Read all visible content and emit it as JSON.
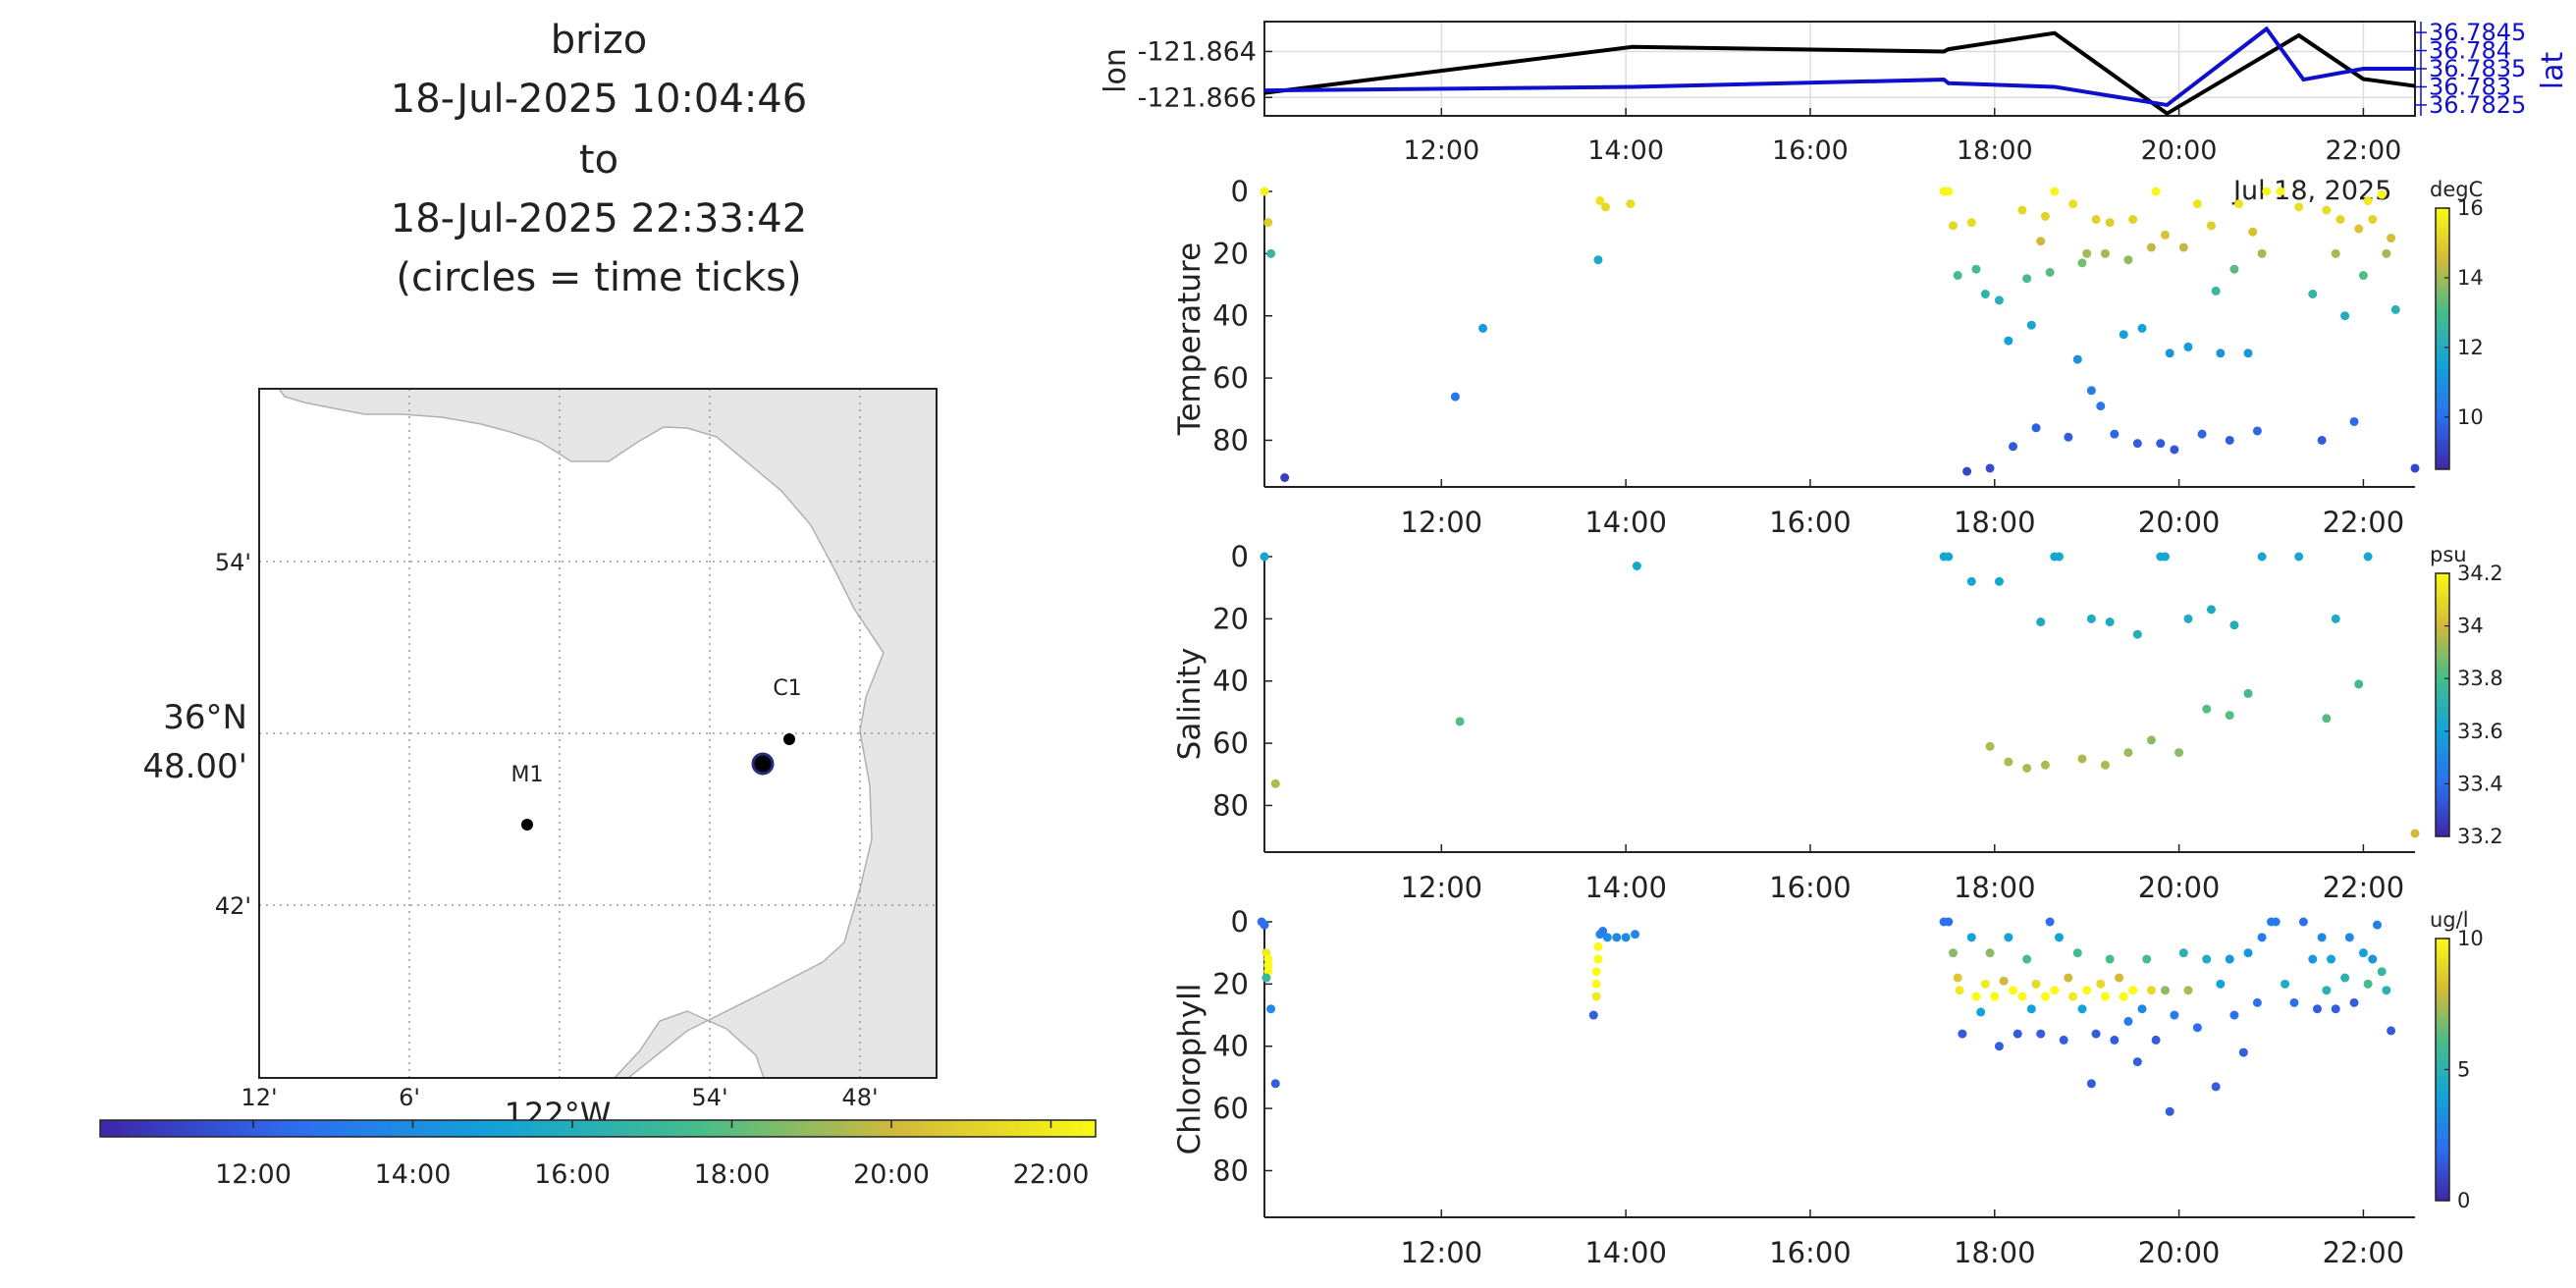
{
  "header": {
    "lines": [
      "brizo",
      "18-Jul-2025 10:04:46",
      "to",
      "18-Jul-2025 22:33:42",
      "(circles = time ticks)"
    ]
  },
  "map": {
    "lat_ticks": [
      "54'",
      "48.00'",
      "42'"
    ],
    "lat_degree_label": "36°N",
    "lon_ticks": [
      "12'",
      "6'",
      "54'",
      "48'"
    ],
    "lon_degree_label": "122°W",
    "markers": [
      {
        "name": "M1",
        "lon": -122.025,
        "lat": 36.75
      },
      {
        "name": "C1",
        "lon": -121.847,
        "lat": 36.797
      }
    ],
    "vehicle": {
      "lon": -121.865,
      "lat": 36.783
    },
    "colorbar_ticks": [
      "12:00",
      "14:00",
      "16:00",
      "18:00",
      "20:00",
      "22:00"
    ]
  },
  "chart_data": [
    {
      "type": "line",
      "id": "position",
      "ylabel": "lon",
      "y2label": "lat",
      "ylim": [
        -121.8668,
        -121.8627
      ],
      "y2lim": [
        36.7822,
        36.7848
      ],
      "yticks": [
        "-121.864",
        "-121.866"
      ],
      "y2ticks": [
        "36.7845",
        "36.784",
        "36.7835",
        "36.783",
        "36.7825"
      ],
      "xticks": [
        "12:00",
        "14:00",
        "16:00",
        "18:00",
        "20:00",
        "22:00"
      ],
      "x_partial_label": "Jul 18, 2025",
      "grid": true,
      "series": [
        {
          "axis": "lon",
          "color": "#000000",
          "x": [
            10.08,
            14.07,
            17.45,
            17.5,
            18.65,
            19.87,
            21.3,
            22.0,
            22.56
          ],
          "y": [
            -121.8658,
            -121.8638,
            -121.864,
            -121.8639,
            -121.8632,
            -121.8667,
            -121.8633,
            -121.8652,
            -121.8655
          ]
        },
        {
          "axis": "lat",
          "color": "#1010cc",
          "x": [
            10.08,
            14.07,
            17.45,
            17.5,
            18.65,
            19.87,
            20.95,
            21.35,
            22.0,
            22.56
          ],
          "y": [
            36.7829,
            36.783,
            36.7832,
            36.7831,
            36.783,
            36.7825,
            36.7846,
            36.7832,
            36.7835,
            36.7835
          ]
        }
      ]
    },
    {
      "type": "scatter",
      "id": "temperature",
      "ylabel": "Temperature",
      "colorbar_label": "degC",
      "colorbar_ticks": [
        "16",
        "14",
        "12",
        "10"
      ],
      "cmin": 8.5,
      "cmax": 16,
      "ylim": [
        95,
        0
      ],
      "yticks": [
        "0",
        "20",
        "40",
        "60",
        "80"
      ],
      "xticks": [
        "12:00",
        "14:00",
        "16:00",
        "18:00",
        "20:00",
        "22:00"
      ],
      "points": [
        [
          10.08,
          0,
          15.8
        ],
        [
          10.12,
          10,
          15.0
        ],
        [
          10.15,
          20,
          12.6
        ],
        [
          10.3,
          92,
          9.0
        ],
        [
          12.15,
          66,
          10.2
        ],
        [
          12.45,
          44,
          11.2
        ],
        [
          13.7,
          22,
          11.8
        ],
        [
          13.72,
          3,
          15.5
        ],
        [
          13.78,
          5,
          15.2
        ],
        [
          14.05,
          4,
          15.3
        ],
        [
          17.45,
          0,
          15.9
        ],
        [
          17.5,
          0,
          15.9
        ],
        [
          17.55,
          11,
          15.2
        ],
        [
          17.6,
          27,
          13.0
        ],
        [
          17.7,
          90,
          9.2
        ],
        [
          17.75,
          10,
          15.3
        ],
        [
          17.8,
          25,
          12.8
        ],
        [
          17.9,
          33,
          12.4
        ],
        [
          17.95,
          89,
          9.3
        ],
        [
          18.05,
          35,
          12.2
        ],
        [
          18.15,
          48,
          11.4
        ],
        [
          18.2,
          82,
          9.5
        ],
        [
          18.3,
          6,
          15.2
        ],
        [
          18.35,
          28,
          13.0
        ],
        [
          18.4,
          43,
          11.6
        ],
        [
          18.45,
          76,
          9.7
        ],
        [
          18.5,
          16,
          14.5
        ],
        [
          18.55,
          8,
          15.1
        ],
        [
          18.6,
          26,
          13.2
        ],
        [
          18.65,
          0,
          15.9
        ],
        [
          18.8,
          79,
          9.6
        ],
        [
          18.85,
          4,
          15.4
        ],
        [
          18.9,
          54,
          11.0
        ],
        [
          18.95,
          23,
          13.5
        ],
        [
          19.0,
          20,
          14.0
        ],
        [
          19.05,
          64,
          10.4
        ],
        [
          19.1,
          9,
          15.1
        ],
        [
          19.15,
          69,
          10.2
        ],
        [
          19.2,
          20,
          14.0
        ],
        [
          19.25,
          10,
          15.0
        ],
        [
          19.3,
          78,
          9.8
        ],
        [
          19.4,
          46,
          11.4
        ],
        [
          19.45,
          22,
          13.8
        ],
        [
          19.5,
          9,
          15.1
        ],
        [
          19.55,
          81,
          9.6
        ],
        [
          19.6,
          44,
          11.5
        ],
        [
          19.7,
          18,
          14.3
        ],
        [
          19.75,
          0,
          15.9
        ],
        [
          19.8,
          81,
          9.6
        ],
        [
          19.85,
          14,
          14.7
        ],
        [
          19.9,
          52,
          11.1
        ],
        [
          19.95,
          83,
          9.5
        ],
        [
          20.05,
          18,
          14.3
        ],
        [
          20.1,
          50,
          11.2
        ],
        [
          20.2,
          4,
          15.5
        ],
        [
          20.25,
          78,
          9.8
        ],
        [
          20.35,
          11,
          15.0
        ],
        [
          20.4,
          32,
          12.6
        ],
        [
          20.45,
          52,
          11.1
        ],
        [
          20.55,
          80,
          9.6
        ],
        [
          20.6,
          25,
          13.2
        ],
        [
          20.65,
          4,
          15.5
        ],
        [
          20.75,
          52,
          11.1
        ],
        [
          20.8,
          13,
          14.7
        ],
        [
          20.85,
          77,
          9.8
        ],
        [
          20.9,
          20,
          14.0
        ],
        [
          20.95,
          0,
          15.9
        ],
        [
          21.1,
          0,
          15.9
        ],
        [
          21.3,
          5,
          15.4
        ],
        [
          21.45,
          33,
          12.5
        ],
        [
          21.55,
          80,
          9.6
        ],
        [
          21.6,
          6,
          15.3
        ],
        [
          21.7,
          20,
          14.0
        ],
        [
          21.75,
          9,
          15.1
        ],
        [
          21.8,
          40,
          12.0
        ],
        [
          21.9,
          74,
          9.9
        ],
        [
          21.95,
          12,
          14.8
        ],
        [
          22.0,
          27,
          13.1
        ],
        [
          22.05,
          3,
          15.6
        ],
        [
          22.1,
          9,
          15.1
        ],
        [
          22.2,
          1,
          15.9
        ],
        [
          22.25,
          20,
          14.0
        ],
        [
          22.3,
          15,
          14.6
        ],
        [
          22.35,
          38,
          12.2
        ],
        [
          22.56,
          89,
          9.2
        ]
      ]
    },
    {
      "type": "scatter",
      "id": "salinity",
      "ylabel": "Salinity",
      "colorbar_label": "psu",
      "colorbar_ticks": [
        "34.2",
        "34",
        "33.8",
        "33.6",
        "33.4",
        "33.2"
      ],
      "cmin": 33.2,
      "cmax": 34.2,
      "ylim": [
        95,
        0
      ],
      "yticks": [
        "0",
        "20",
        "40",
        "60",
        "80"
      ],
      "xticks": [
        "12:00",
        "14:00",
        "16:00",
        "18:00",
        "20:00",
        "22:00"
      ],
      "points": [
        [
          10.08,
          0,
          33.62
        ],
        [
          10.2,
          73,
          33.95
        ],
        [
          12.2,
          53,
          33.82
        ],
        [
          14.12,
          3,
          33.62
        ],
        [
          17.45,
          0,
          33.62
        ],
        [
          17.5,
          0,
          33.62
        ],
        [
          17.75,
          8,
          33.62
        ],
        [
          17.95,
          61,
          33.95
        ],
        [
          18.05,
          8,
          33.62
        ],
        [
          18.15,
          66,
          33.95
        ],
        [
          18.35,
          68,
          33.95
        ],
        [
          18.5,
          21,
          33.65
        ],
        [
          18.55,
          67,
          33.95
        ],
        [
          18.65,
          0,
          33.62
        ],
        [
          18.7,
          0,
          33.62
        ],
        [
          18.95,
          65,
          33.95
        ],
        [
          19.05,
          20,
          33.65
        ],
        [
          19.2,
          67,
          33.95
        ],
        [
          19.25,
          21,
          33.65
        ],
        [
          19.45,
          63,
          33.92
        ],
        [
          19.55,
          25,
          33.68
        ],
        [
          19.7,
          59,
          33.9
        ],
        [
          19.8,
          0,
          33.62
        ],
        [
          19.85,
          0,
          33.62
        ],
        [
          20.0,
          63,
          33.9
        ],
        [
          20.1,
          20,
          33.65
        ],
        [
          20.3,
          49,
          33.82
        ],
        [
          20.35,
          17,
          33.65
        ],
        [
          20.55,
          51,
          33.82
        ],
        [
          20.6,
          22,
          33.68
        ],
        [
          20.75,
          44,
          33.78
        ],
        [
          20.9,
          0,
          33.62
        ],
        [
          21.3,
          0,
          33.62
        ],
        [
          21.6,
          52,
          33.82
        ],
        [
          21.7,
          20,
          33.65
        ],
        [
          21.95,
          41,
          33.78
        ],
        [
          22.05,
          0,
          33.62
        ],
        [
          22.56,
          89,
          34.0
        ]
      ]
    },
    {
      "type": "scatter",
      "id": "chlorophyll",
      "ylabel": "Chlorophyll",
      "colorbar_label": "ug/l",
      "colorbar_ticks": [
        "10",
        "5",
        "0"
      ],
      "cmin": 0,
      "cmax": 10,
      "ylim": [
        95,
        0
      ],
      "yticks": [
        "0",
        "20",
        "40",
        "60",
        "80"
      ],
      "xticks": [
        "12:00",
        "14:00",
        "16:00",
        "18:00",
        "20:00",
        "22:00"
      ],
      "points": [
        [
          10.05,
          0,
          2.0
        ],
        [
          10.08,
          1,
          2.0
        ],
        [
          10.1,
          10,
          9.5
        ],
        [
          10.12,
          12,
          10
        ],
        [
          10.12,
          14,
          10
        ],
        [
          10.12,
          16,
          10
        ],
        [
          10.1,
          18,
          5.5
        ],
        [
          10.15,
          28,
          3.0
        ],
        [
          10.2,
          52,
          1.5
        ],
        [
          13.65,
          30,
          1.5
        ],
        [
          13.68,
          24,
          9.5
        ],
        [
          13.68,
          20,
          10
        ],
        [
          13.68,
          16,
          10
        ],
        [
          13.7,
          12,
          10
        ],
        [
          13.7,
          8,
          10
        ],
        [
          13.72,
          4,
          3.0
        ],
        [
          13.75,
          3,
          2.5
        ],
        [
          13.8,
          5,
          3.0
        ],
        [
          13.9,
          5,
          3.0
        ],
        [
          14.0,
          5,
          3.0
        ],
        [
          14.1,
          4,
          3.0
        ],
        [
          17.45,
          0,
          2.0
        ],
        [
          17.5,
          0,
          2.0
        ],
        [
          17.55,
          10,
          7.0
        ],
        [
          17.6,
          18,
          8.5
        ],
        [
          17.62,
          22,
          9.5
        ],
        [
          17.65,
          36,
          1.5
        ],
        [
          17.75,
          5,
          4.0
        ],
        [
          17.8,
          24,
          10
        ],
        [
          17.85,
          29,
          4.0
        ],
        [
          17.9,
          20,
          9.5
        ],
        [
          17.95,
          10,
          7.0
        ],
        [
          18.0,
          24,
          10
        ],
        [
          18.05,
          40,
          1.5
        ],
        [
          18.1,
          19,
          8.0
        ],
        [
          18.15,
          5,
          4.0
        ],
        [
          18.2,
          22,
          10
        ],
        [
          18.25,
          36,
          1.5
        ],
        [
          18.3,
          24,
          10
        ],
        [
          18.35,
          12,
          6.0
        ],
        [
          18.4,
          28,
          4.0
        ],
        [
          18.45,
          20,
          9.0
        ],
        [
          18.5,
          36,
          1.5
        ],
        [
          18.55,
          24,
          10
        ],
        [
          18.6,
          0,
          2.0
        ],
        [
          18.65,
          22,
          10
        ],
        [
          18.7,
          5,
          4.0
        ],
        [
          18.75,
          38,
          1.5
        ],
        [
          18.8,
          18,
          8.0
        ],
        [
          18.85,
          24,
          9.5
        ],
        [
          18.9,
          10,
          6.0
        ],
        [
          18.95,
          28,
          4.0
        ],
        [
          19.0,
          22,
          10
        ],
        [
          19.05,
          52,
          1.5
        ],
        [
          19.1,
          36,
          1.5
        ],
        [
          19.15,
          20,
          9.0
        ],
        [
          19.2,
          24,
          10
        ],
        [
          19.25,
          12,
          6.0
        ],
        [
          19.3,
          38,
          1.5
        ],
        [
          19.35,
          18,
          8.0
        ],
        [
          19.4,
          24,
          10
        ],
        [
          19.45,
          32,
          2.5
        ],
        [
          19.5,
          22,
          10
        ],
        [
          19.55,
          45,
          1.5
        ],
        [
          19.6,
          28,
          3.0
        ],
        [
          19.65,
          12,
          6.0
        ],
        [
          19.7,
          22,
          9.0
        ],
        [
          19.75,
          38,
          1.5
        ],
        [
          19.85,
          22,
          7.0
        ],
        [
          19.9,
          61,
          1.5
        ],
        [
          19.95,
          30,
          2.5
        ],
        [
          20.05,
          10,
          5.0
        ],
        [
          20.1,
          22,
          7.5
        ],
        [
          20.2,
          34,
          2.0
        ],
        [
          20.3,
          12,
          4.5
        ],
        [
          20.4,
          53,
          1.5
        ],
        [
          20.45,
          20,
          4.0
        ],
        [
          20.55,
          12,
          3.5
        ],
        [
          20.6,
          30,
          2.0
        ],
        [
          20.7,
          42,
          1.5
        ],
        [
          20.75,
          10,
          3.5
        ],
        [
          20.85,
          26,
          2.0
        ],
        [
          20.9,
          5,
          2.5
        ],
        [
          21.0,
          0,
          2.5
        ],
        [
          21.05,
          0,
          2.5
        ],
        [
          21.15,
          20,
          4.5
        ],
        [
          21.25,
          26,
          2.0
        ],
        [
          21.35,
          0,
          2.0
        ],
        [
          21.45,
          12,
          3.5
        ],
        [
          21.5,
          28,
          1.5
        ],
        [
          21.55,
          5,
          3.0
        ],
        [
          21.6,
          22,
          5.0
        ],
        [
          21.65,
          12,
          4.0
        ],
        [
          21.7,
          28,
          1.5
        ],
        [
          21.8,
          18,
          5.0
        ],
        [
          21.85,
          5,
          3.0
        ],
        [
          21.9,
          26,
          1.5
        ],
        [
          22.0,
          10,
          4.0
        ],
        [
          22.05,
          20,
          6.0
        ],
        [
          22.1,
          12,
          3.5
        ],
        [
          22.15,
          1,
          2.5
        ],
        [
          22.2,
          16,
          5.5
        ],
        [
          22.25,
          22,
          5.0
        ],
        [
          22.3,
          35,
          1.5
        ]
      ]
    }
  ]
}
